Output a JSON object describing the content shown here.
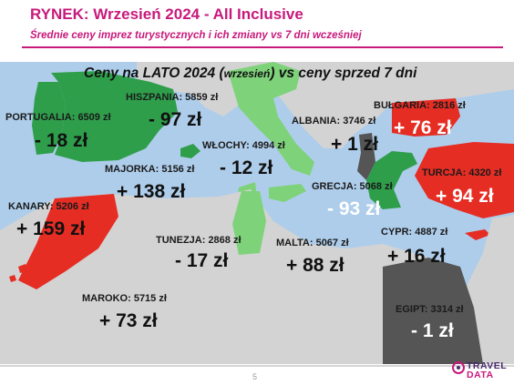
{
  "header": {
    "title": "RYNEK: Wrzesień 2024 - All Inclusive",
    "subtitle": "Średnie ceny imprez turystycznych i ich zmiany vs 7 dni wcześniej"
  },
  "map": {
    "heading_main": "Ceny na LATO 2024 (",
    "heading_small": "wrzesień",
    "heading_end": ") vs ceny sprzed 7 dni",
    "colors": {
      "sea": "#aecdea",
      "land": "#d3d3d3",
      "increase": "#e52d24",
      "decrease_strong": "#2e9e4b",
      "decrease_light": "#7ed27a"
    },
    "destinations": {
      "portugalia": {
        "label": "PORTUGALIA: 6509 zł",
        "change": "- 18 zł"
      },
      "hiszpania": {
        "label": "HISZPANIA: 5859 zł",
        "change": "- 97 zł"
      },
      "majorka": {
        "label": "MAJORKA: 5156 zł",
        "change": "+ 138 zł"
      },
      "kanary": {
        "label": "KANARY: 5206 zł",
        "change": "+ 159 zł"
      },
      "maroko": {
        "label": "MAROKO: 5715 zł",
        "change": "+ 73 zł"
      },
      "wlochy": {
        "label": "WŁOCHY: 4994 zł",
        "change": "- 12 zł"
      },
      "tunezja": {
        "label": "TUNEZJA: 2868 zł",
        "change": "- 17 zł"
      },
      "malta": {
        "label": "MALTA: 5067 zł",
        "change": "+ 88 zł"
      },
      "albania": {
        "label": "ALBANIA: 3746 zł",
        "change": "+ 1 zł"
      },
      "bulgaria": {
        "label": "BUŁGARIA: 2816 zł",
        "change": "+ 76 zł"
      },
      "grecja": {
        "label": "GRECJA: 5068 zł",
        "change": "- 93 zł"
      },
      "turcja": {
        "label": "TURCJA: 4320 zł",
        "change": "+ 94 zł"
      },
      "cypr": {
        "label": "CYPR: 4887 zł",
        "change": "+ 16 zł"
      },
      "egipt": {
        "label": "EGIPT: 3314 zł",
        "change": "- 1 zł"
      }
    }
  },
  "footer": {
    "page_number": "5",
    "logo_line1": "TRAVEL",
    "logo_line2": "DATA"
  }
}
